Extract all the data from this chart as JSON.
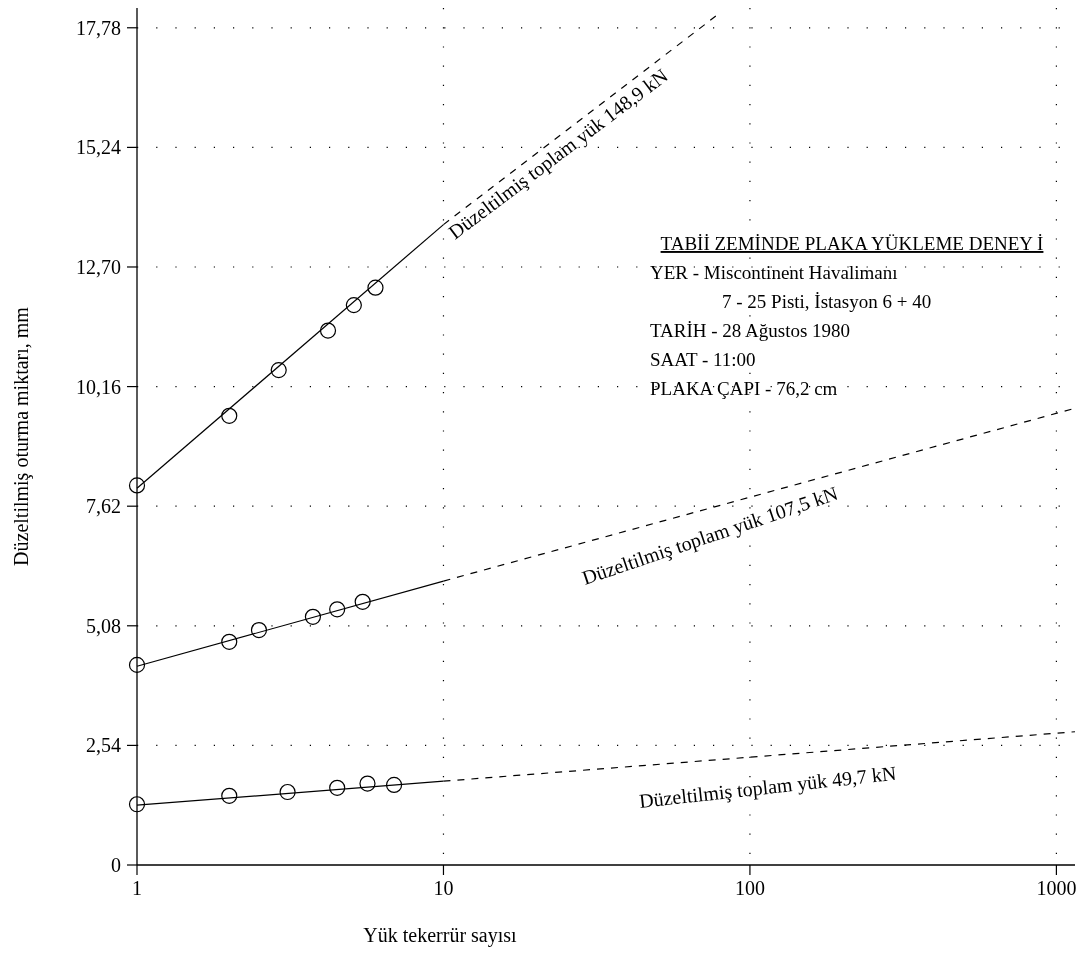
{
  "chart_data": {
    "type": "line",
    "xlabel": "Yük tekerrür sayısı",
    "ylabel": "Düzeltilmiş oturma miktarı, mm",
    "log": "x",
    "grid": true,
    "xlim": [
      1,
      1150
    ],
    "ylim": [
      0,
      18.2
    ],
    "xticks": [
      1,
      10,
      100,
      1000
    ],
    "yticks": [
      0,
      {
        "value": 2.54,
        "label": "2,54"
      },
      {
        "value": 5.08,
        "label": "5,08"
      },
      {
        "value": 7.62,
        "label": "7,62"
      },
      {
        "value": 10.16,
        "label": "10,16"
      },
      {
        "value": 12.7,
        "label": "12,70"
      },
      {
        "value": 15.24,
        "label": "15,24"
      },
      {
        "value": 17.78,
        "label": "17,78"
      }
    ],
    "series": [
      {
        "type": "scatter",
        "marker": "circle",
        "color": "#000000",
        "x": [
          1,
          2,
          2.9,
          4.2,
          5.1,
          6
        ],
        "values": [
          8.06,
          9.54,
          10.51,
          11.35,
          11.89,
          12.26
        ]
      },
      {
        "marker": "none",
        "line_style": "solid",
        "color": "#000000",
        "x": [
          1,
          10
        ],
        "values": [
          8.0,
          13.6
        ]
      },
      {
        "marker": "none",
        "line_style": "dashed",
        "color": "#000000",
        "x": [
          10,
          80
        ],
        "values": [
          13.6,
          18.1
        ]
      },
      {
        "type": "scatter",
        "marker": "circle",
        "color": "#000000",
        "x": [
          1,
          2,
          2.5,
          3.75,
          4.5,
          5.45
        ],
        "values": [
          4.25,
          4.74,
          4.99,
          5.27,
          5.43,
          5.59
        ]
      },
      {
        "marker": "none",
        "line_style": "solid",
        "color": "#000000",
        "x": [
          1,
          10
        ],
        "values": [
          4.22,
          6.03
        ]
      },
      {
        "marker": "none",
        "line_style": "dashed",
        "color": "#000000",
        "x": [
          10,
          1150
        ],
        "values": [
          6.03,
          9.7
        ]
      },
      {
        "type": "scatter",
        "marker": "circle",
        "color": "#000000",
        "x": [
          1,
          2,
          3.1,
          4.5,
          5.65,
          6.9
        ],
        "values": [
          1.29,
          1.47,
          1.55,
          1.64,
          1.73,
          1.7
        ]
      },
      {
        "marker": "none",
        "line_style": "solid",
        "color": "#000000",
        "x": [
          1,
          10
        ],
        "values": [
          1.27,
          1.78
        ]
      },
      {
        "marker": "none",
        "line_style": "dashed",
        "color": "#000000",
        "x": [
          10,
          1150
        ],
        "values": [
          1.78,
          2.83
        ]
      }
    ],
    "annotations": [
      "Düzeltilmiş toplam yük  148,9 kN",
      "Düzeltilmiş toplam yük  107,5 kN",
      "Düzeltilmiş toplam yük 49,7 kN",
      "TABİİ ZEMİNDE PLAKA YÜKLEME DENEY İ",
      "YER - Miscontinent Havalimanı",
      "7 - 25 Pisti,  İstasyon 6 + 40",
      "TARİH - 28 Ağustos 1980",
      "SAAT - 11:00",
      "PLAKA ÇAPI - 76,2 cm"
    ]
  }
}
